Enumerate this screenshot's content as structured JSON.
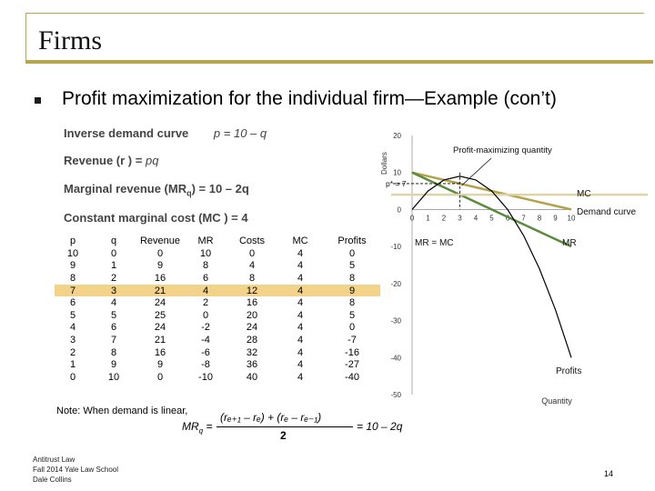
{
  "slide": {
    "title": "Firms",
    "heading": "Profit maximization for the individual firm—Example (con’t)",
    "page_number": "14",
    "footer_lines": [
      "Antitrust Law",
      "Fall 2014   Yale Law School",
      "Dale Collins"
    ],
    "accent_color": "#b7a64e"
  },
  "equations": {
    "inverse_demand_label": "Inverse demand curve",
    "inverse_demand_formula": "p = 10 – q",
    "revenue_label": "Revenue (r ) =",
    "revenue_formula": "pq",
    "mr_label": "Marginal revenue (MR",
    "mr_sub": "q",
    "mr_formula": ") = 10 – 2q",
    "mc_label": "Constant marginal cost (MC ) = 4"
  },
  "table": {
    "headers": [
      "p",
      "q",
      "Revenue",
      "MR",
      "Costs",
      "MC",
      "Profits"
    ],
    "rows": [
      [
        "10",
        "0",
        "0",
        "10",
        "0",
        "4",
        "0"
      ],
      [
        "9",
        "1",
        "9",
        "8",
        "4",
        "4",
        "5"
      ],
      [
        "8",
        "2",
        "16",
        "6",
        "8",
        "4",
        "8"
      ],
      [
        "7",
        "3",
        "21",
        "4",
        "12",
        "4",
        "9"
      ],
      [
        "6",
        "4",
        "24",
        "2",
        "16",
        "4",
        "8"
      ],
      [
        "5",
        "5",
        "25",
        "0",
        "20",
        "4",
        "5"
      ],
      [
        "4",
        "6",
        "24",
        "-2",
        "24",
        "4",
        "0"
      ],
      [
        "3",
        "7",
        "21",
        "-4",
        "28",
        "4",
        "-7"
      ],
      [
        "2",
        "8",
        "16",
        "-6",
        "32",
        "4",
        "-16"
      ],
      [
        "1",
        "9",
        "9",
        "-8",
        "36",
        "4",
        "-27"
      ],
      [
        "0",
        "10",
        "0",
        "-10",
        "40",
        "4",
        "-40"
      ]
    ],
    "highlight_color": "#f3d28a"
  },
  "note": {
    "text": "Note: When demand is linear,",
    "formula_lhs": "MR",
    "formula_lhs_sub": "q",
    "formula_numerator": "(rₑ₊₁ – rₑ) + (rₑ – rₑ₋₁)",
    "formula_denominator": "2",
    "formula_rhs": "= 10 – 2q"
  },
  "chart_data": {
    "type": "line",
    "ylabel": "Dollars",
    "xlabel": "Quantity",
    "xlim": [
      0,
      10
    ],
    "ylim": [
      -50,
      20
    ],
    "x_ticks": [
      "0",
      "1",
      "2",
      "3",
      "4",
      "5",
      "6",
      "7",
      "8",
      "9",
      "10"
    ],
    "y_ticks": [
      "20",
      "10",
      "0",
      "-10",
      "-20",
      "-30",
      "-40",
      "-50"
    ],
    "series": [
      {
        "name": "Demand curve",
        "color": "#b3a24b",
        "x": [
          0,
          1,
          2,
          3,
          4,
          5,
          6,
          7,
          8,
          9,
          10
        ],
        "y": [
          10,
          9,
          8,
          7,
          6,
          5,
          4,
          3,
          2,
          1,
          0
        ]
      },
      {
        "name": "MR",
        "color": "#5a8a3c",
        "x": [
          0,
          1,
          2,
          3,
          4,
          5,
          6,
          7,
          8,
          9,
          10
        ],
        "y": [
          10,
          8,
          6,
          4,
          2,
          0,
          -2,
          -4,
          -6,
          -8,
          -10
        ]
      },
      {
        "name": "MC",
        "color": "#e0d3a8",
        "x": [
          0,
          10
        ],
        "y": [
          4,
          4
        ]
      },
      {
        "name": "Profits",
        "color": "#000000",
        "x": [
          0,
          1,
          2,
          3,
          4,
          5,
          6,
          7,
          8,
          9,
          10
        ],
        "y": [
          0,
          5,
          8,
          9,
          8,
          5,
          0,
          -7,
          -16,
          -27,
          -40
        ]
      }
    ],
    "annotations": {
      "profit_max": "Profit-maximizing quantity",
      "price_label": "p* = 7",
      "mr_eq_mc": "MR = MC",
      "mc": "MC",
      "demand": "Demand curve",
      "mr": "MR",
      "profits": "Profits"
    }
  }
}
